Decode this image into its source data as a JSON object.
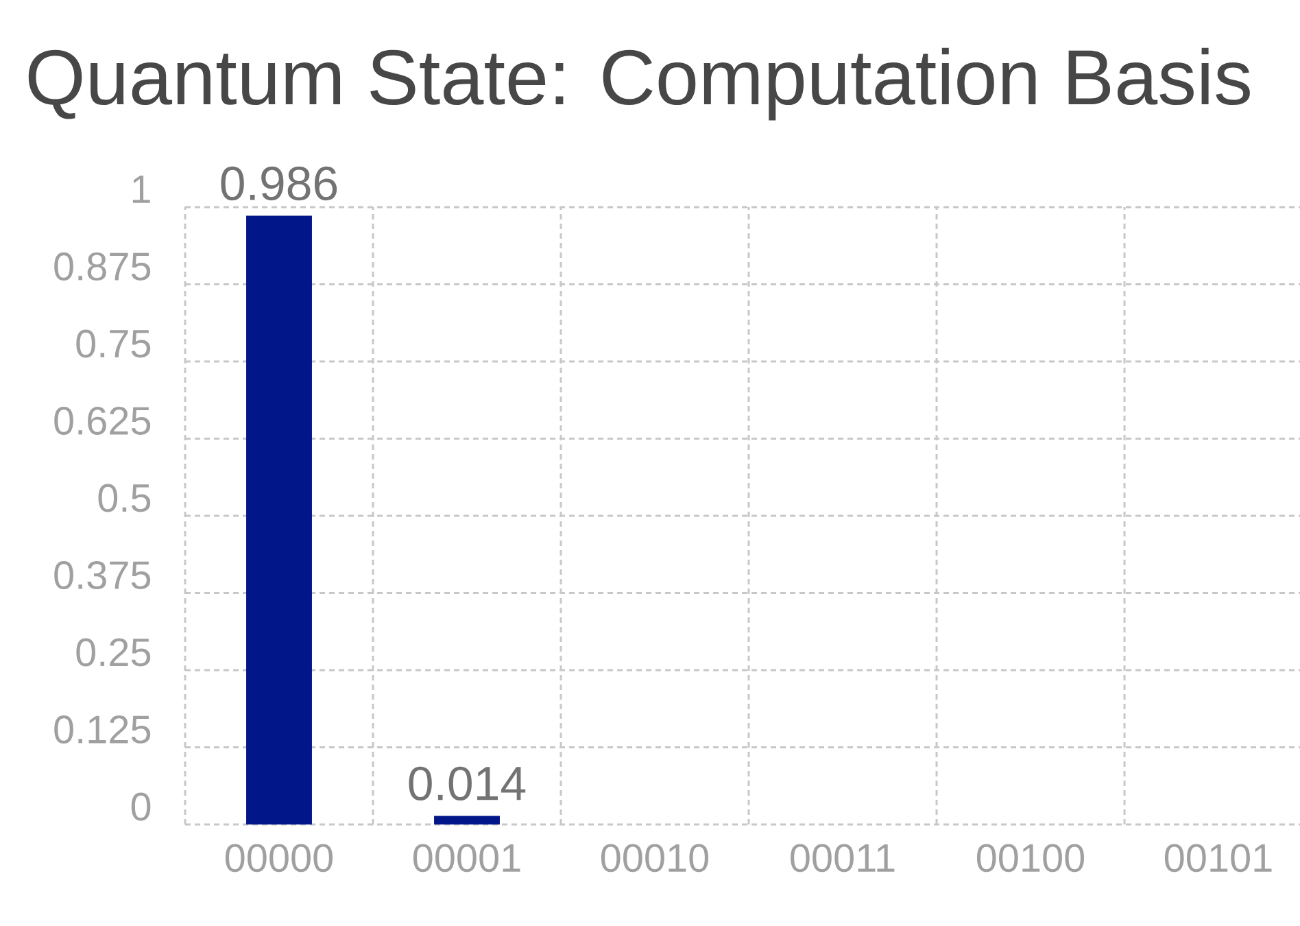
{
  "chart_data": {
    "type": "bar",
    "title": "Quantum State: Computation Basis",
    "categories": [
      "00000",
      "00001",
      "00010",
      "00011",
      "00100",
      "00101"
    ],
    "values": [
      0.986,
      0.014,
      0,
      0,
      0,
      0
    ],
    "value_labels": [
      "0.986",
      "0.014",
      null,
      null,
      null,
      null
    ],
    "color": "#001689",
    "ylim": [
      0,
      1
    ],
    "yticks": [
      0,
      0.125,
      0.25,
      0.375,
      0.5,
      0.625,
      0.75,
      0.875,
      1
    ],
    "grid": true
  }
}
